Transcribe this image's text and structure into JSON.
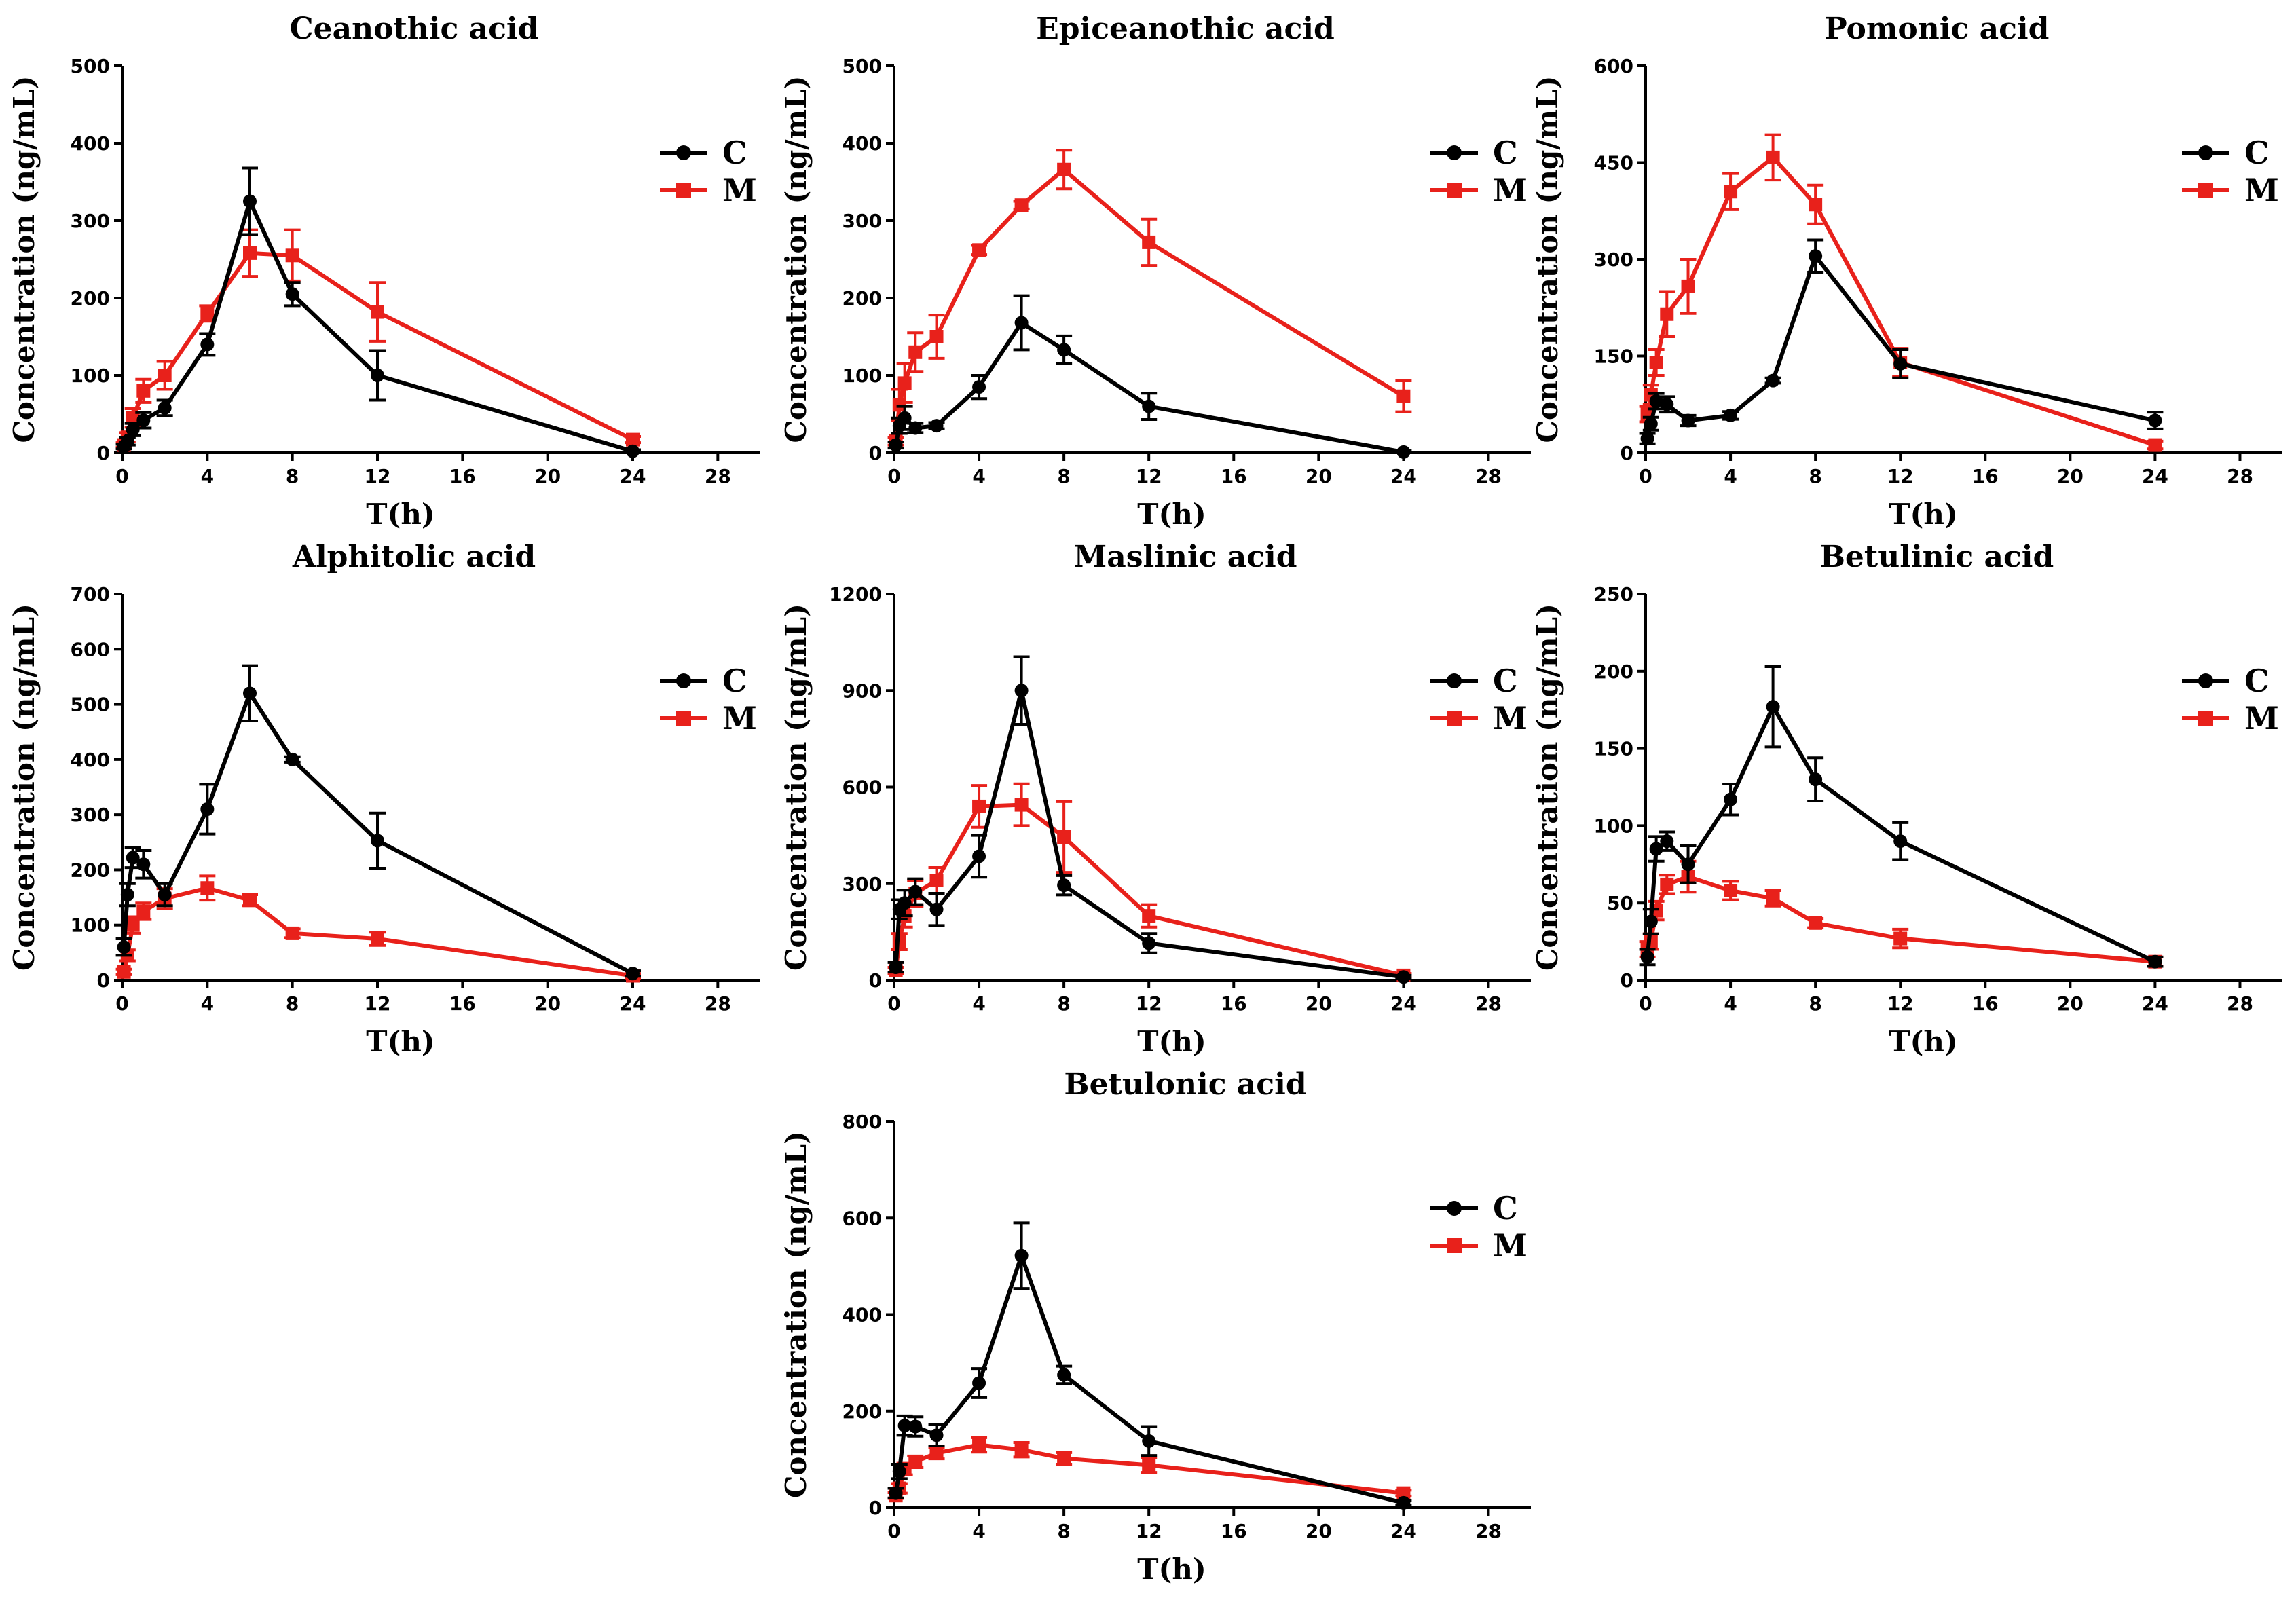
{
  "colors": {
    "C": "#000000",
    "M": "#e8211b"
  },
  "chart_data": [
    {
      "type": "line",
      "title": "Ceanothic acid",
      "xlabel": "T(h)",
      "ylabel": "Concentration (ng/mL)",
      "xlim": [
        0,
        30
      ],
      "xticks": [
        0,
        4,
        8,
        12,
        16,
        20,
        24,
        28
      ],
      "ylim": [
        0,
        500
      ],
      "yticks": [
        0,
        100,
        200,
        300,
        400,
        500
      ],
      "legend": {
        "position": "top-right",
        "entries": [
          "C",
          "M"
        ]
      },
      "series": [
        {
          "name": "C",
          "marker": "circle",
          "x": [
            0.083,
            0.25,
            0.5,
            1,
            2,
            4,
            6,
            8,
            12,
            24
          ],
          "y": [
            8,
            15,
            30,
            42,
            58,
            140,
            325,
            205,
            100,
            2
          ],
          "err": [
            3,
            5,
            8,
            10,
            10,
            14,
            43,
            15,
            32,
            2
          ]
        },
        {
          "name": "M",
          "marker": "square",
          "x": [
            0.083,
            0.25,
            0.5,
            1,
            2,
            4,
            6,
            8,
            12,
            24
          ],
          "y": [
            10,
            20,
            45,
            80,
            100,
            180,
            258,
            255,
            182,
            17
          ],
          "err": [
            3,
            6,
            12,
            15,
            18,
            10,
            30,
            33,
            38,
            4
          ]
        }
      ]
    },
    {
      "type": "line",
      "title": "Epiceanothic acid",
      "xlabel": "T(h)",
      "ylabel": "Concentration (ng/mL)",
      "xlim": [
        0,
        30
      ],
      "xticks": [
        0,
        4,
        8,
        12,
        16,
        20,
        24,
        28
      ],
      "ylim": [
        0,
        500
      ],
      "yticks": [
        0,
        100,
        200,
        300,
        400,
        500
      ],
      "legend": {
        "position": "top-right",
        "entries": [
          "C",
          "M"
        ]
      },
      "series": [
        {
          "name": "C",
          "marker": "circle",
          "x": [
            0.083,
            0.25,
            0.5,
            1,
            2,
            4,
            6,
            8,
            12,
            24
          ],
          "y": [
            10,
            35,
            45,
            32,
            35,
            85,
            168,
            133,
            60,
            1
          ],
          "err": [
            4,
            10,
            15,
            6,
            4,
            15,
            35,
            18,
            17,
            2
          ]
        },
        {
          "name": "M",
          "marker": "square",
          "x": [
            0.083,
            0.25,
            0.5,
            1,
            2,
            4,
            6,
            8,
            12,
            24
          ],
          "y": [
            15,
            62,
            90,
            130,
            150,
            262,
            320,
            366,
            272,
            73
          ],
          "err": [
            5,
            20,
            25,
            25,
            28,
            6,
            5,
            25,
            30,
            20
          ]
        }
      ]
    },
    {
      "type": "line",
      "title": "Pomonic acid",
      "xlabel": "T(h)",
      "ylabel": "Concentration (ng/mL)",
      "xlim": [
        0,
        30
      ],
      "xticks": [
        0,
        4,
        8,
        12,
        16,
        20,
        24,
        28
      ],
      "ylim": [
        0,
        600
      ],
      "yticks": [
        0,
        150,
        300,
        450,
        600
      ],
      "legend": {
        "position": "top-right",
        "entries": [
          "C",
          "M"
        ]
      },
      "series": [
        {
          "name": "C",
          "marker": "circle",
          "x": [
            0.083,
            0.25,
            0.5,
            1,
            2,
            4,
            6,
            8,
            12,
            24
          ],
          "y": [
            22,
            45,
            80,
            75,
            50,
            58,
            112,
            305,
            138,
            50
          ],
          "err": [
            8,
            10,
            12,
            12,
            8,
            6,
            4,
            25,
            22,
            13
          ]
        },
        {
          "name": "M",
          "marker": "square",
          "x": [
            0.083,
            0.25,
            0.5,
            1,
            2,
            4,
            6,
            8,
            12,
            24
          ],
          "y": [
            60,
            90,
            140,
            215,
            258,
            405,
            458,
            385,
            140,
            12
          ],
          "err": [
            12,
            15,
            20,
            35,
            42,
            28,
            35,
            30,
            22,
            6
          ]
        }
      ]
    },
    {
      "type": "line",
      "title": "Alphitolic acid",
      "xlabel": "T(h)",
      "ylabel": "Concentration (ng/mL)",
      "xlim": [
        0,
        30
      ],
      "xticks": [
        0,
        4,
        8,
        12,
        16,
        20,
        24,
        28
      ],
      "ylim": [
        0,
        700
      ],
      "yticks": [
        0,
        100,
        200,
        300,
        400,
        500,
        600,
        700
      ],
      "legend": {
        "position": "top-right",
        "entries": [
          "C",
          "M"
        ]
      },
      "series": [
        {
          "name": "C",
          "marker": "circle",
          "x": [
            0.083,
            0.25,
            0.5,
            1,
            2,
            4,
            6,
            8,
            12,
            24
          ],
          "y": [
            60,
            155,
            222,
            210,
            155,
            310,
            520,
            400,
            253,
            12
          ],
          "err": [
            15,
            20,
            18,
            25,
            20,
            45,
            50,
            5,
            50,
            5
          ]
        },
        {
          "name": "M",
          "marker": "square",
          "x": [
            0.083,
            0.25,
            0.5,
            1,
            2,
            4,
            6,
            8,
            12,
            24
          ],
          "y": [
            15,
            45,
            100,
            125,
            148,
            167,
            145,
            85,
            75,
            8
          ],
          "err": [
            5,
            10,
            15,
            15,
            18,
            22,
            10,
            8,
            12,
            4
          ]
        }
      ]
    },
    {
      "type": "line",
      "title": "Maslinic acid",
      "xlabel": "T(h)",
      "ylabel": "Concentration (ng/mL)",
      "xlim": [
        0,
        30
      ],
      "xticks": [
        0,
        4,
        8,
        12,
        16,
        20,
        24,
        28
      ],
      "ylim": [
        0,
        1200
      ],
      "yticks": [
        0,
        300,
        600,
        900,
        1200
      ],
      "legend": {
        "position": "top-right",
        "entries": [
          "C",
          "M"
        ]
      },
      "series": [
        {
          "name": "C",
          "marker": "circle",
          "x": [
            0.083,
            0.25,
            0.5,
            1,
            2,
            4,
            6,
            8,
            12,
            24
          ],
          "y": [
            40,
            220,
            240,
            275,
            220,
            385,
            900,
            295,
            115,
            10
          ],
          "err": [
            15,
            30,
            40,
            40,
            50,
            65,
            105,
            30,
            30,
            5
          ]
        },
        {
          "name": "M",
          "marker": "square",
          "x": [
            0.083,
            0.25,
            0.5,
            1,
            2,
            4,
            6,
            8,
            12,
            24
          ],
          "y": [
            30,
            120,
            200,
            270,
            310,
            540,
            545,
            445,
            200,
            15
          ],
          "err": [
            10,
            25,
            35,
            40,
            40,
            65,
            65,
            110,
            35,
            6
          ]
        }
      ]
    },
    {
      "type": "line",
      "title": "Betulinic acid",
      "xlabel": "T(h)",
      "ylabel": "Concentration (ng/mL)",
      "xlim": [
        0,
        30
      ],
      "xticks": [
        0,
        4,
        8,
        12,
        16,
        20,
        24,
        28
      ],
      "ylim": [
        0,
        250
      ],
      "yticks": [
        0,
        50,
        100,
        150,
        200,
        250
      ],
      "legend": {
        "position": "top-right",
        "entries": [
          "C",
          "M"
        ]
      },
      "series": [
        {
          "name": "C",
          "marker": "circle",
          "x": [
            0.083,
            0.25,
            0.5,
            1,
            2,
            4,
            6,
            8,
            12,
            24
          ],
          "y": [
            15,
            38,
            85,
            90,
            75,
            117,
            177,
            130,
            90,
            12
          ],
          "err": [
            5,
            8,
            8,
            6,
            12,
            10,
            26,
            14,
            12,
            3
          ]
        },
        {
          "name": "M",
          "marker": "square",
          "x": [
            0.083,
            0.25,
            0.5,
            1,
            2,
            4,
            6,
            8,
            12,
            24
          ],
          "y": [
            20,
            25,
            45,
            62,
            67,
            58,
            53,
            37,
            27,
            12
          ],
          "err": [
            5,
            5,
            6,
            6,
            10,
            6,
            5,
            3,
            6,
            3
          ]
        }
      ]
    },
    {
      "type": "line",
      "title": "Betulonic acid",
      "xlabel": "T(h)",
      "ylabel": "Concentration (ng/mL)",
      "xlim": [
        0,
        30
      ],
      "xticks": [
        0,
        4,
        8,
        12,
        16,
        20,
        24,
        28
      ],
      "ylim": [
        0,
        800
      ],
      "yticks": [
        0,
        200,
        400,
        600,
        800
      ],
      "legend": {
        "position": "top-right",
        "entries": [
          "C",
          "M"
        ]
      },
      "series": [
        {
          "name": "C",
          "marker": "circle",
          "x": [
            0.083,
            0.25,
            0.5,
            1,
            2,
            4,
            6,
            8,
            12,
            24
          ],
          "y": [
            30,
            75,
            170,
            168,
            150,
            258,
            522,
            275,
            138,
            10
          ],
          "err": [
            10,
            15,
            20,
            20,
            22,
            30,
            68,
            18,
            30,
            5
          ]
        },
        {
          "name": "M",
          "marker": "square",
          "x": [
            0.083,
            0.25,
            0.5,
            1,
            2,
            4,
            6,
            8,
            12,
            24
          ],
          "y": [
            25,
            40,
            80,
            95,
            113,
            130,
            120,
            102,
            88,
            30
          ],
          "err": [
            6,
            10,
            12,
            12,
            12,
            15,
            15,
            12,
            15,
            6
          ]
        }
      ]
    }
  ]
}
